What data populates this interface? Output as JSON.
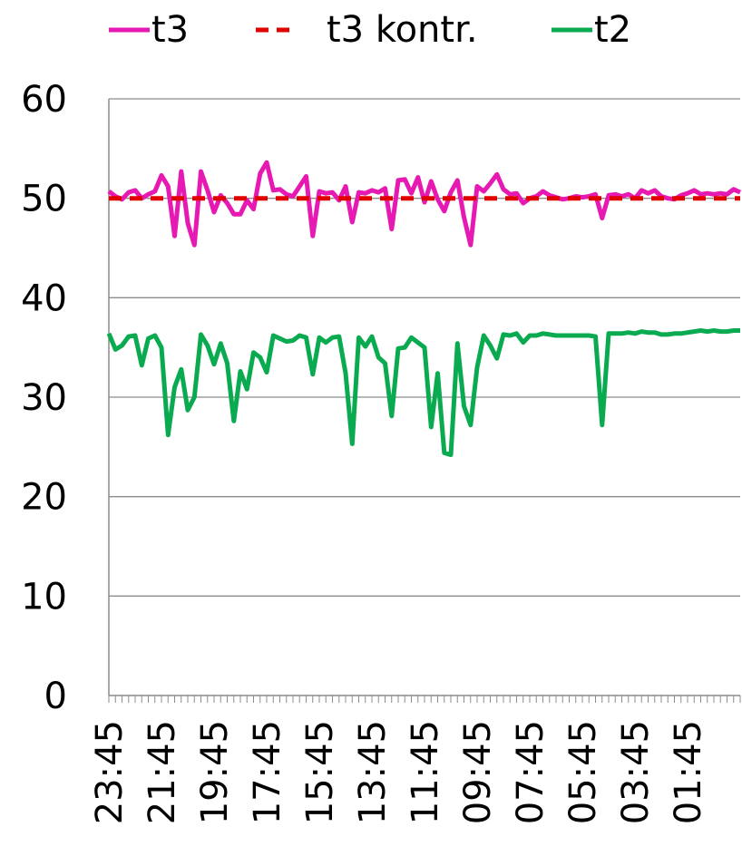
{
  "chart_data": {
    "type": "line",
    "title": "",
    "xlabel": "",
    "ylabel": "",
    "ylim": [
      0,
      60
    ],
    "yticks": [
      0,
      10,
      20,
      30,
      40,
      50,
      60
    ],
    "grid": "horizontal",
    "legend_position": "top",
    "x_tick_labels": [
      "23:45",
      "21:45",
      "19:45",
      "17:45",
      "15:45",
      "13:45",
      "11:45",
      "09:45",
      "07:45",
      "05:45",
      "03:45",
      "01:45"
    ],
    "x_tick_label_rotation": "vertical",
    "series": [
      {
        "name": "t3",
        "color": "#e619b3",
        "style": "solid",
        "values": [
          50.7,
          50.2,
          49.9,
          50.6,
          50.8,
          50.0,
          50.4,
          50.7,
          52.3,
          51.2,
          46.2,
          52.7,
          47.5,
          45.3,
          52.7,
          50.8,
          48.6,
          50.3,
          49.5,
          48.4,
          48.4,
          49.8,
          48.9,
          52.5,
          53.6,
          50.8,
          50.9,
          50.4,
          50.2,
          51.2,
          52.2,
          46.2,
          50.7,
          50.5,
          50.6,
          49.8,
          51.2,
          47.6,
          50.6,
          50.5,
          50.8,
          50.6,
          51.0,
          46.9,
          51.8,
          51.9,
          50.5,
          52.1,
          49.6,
          51.7,
          49.9,
          48.7,
          50.6,
          51.8,
          48.1,
          45.3,
          51.2,
          50.7,
          51.5,
          52.4,
          50.9,
          50.4,
          50.5,
          49.5,
          50.0,
          50.2,
          50.7,
          50.3,
          50.1,
          49.9,
          50.0,
          50.2,
          50.1,
          50.2,
          50.4,
          48.0,
          50.3,
          50.4,
          50.2,
          50.4,
          50.0,
          50.8,
          50.5,
          50.8,
          50.2,
          50.0,
          49.9,
          50.3,
          50.5,
          50.8,
          50.4,
          50.5,
          50.4,
          50.5,
          50.4,
          50.9,
          50.6
        ]
      },
      {
        "name": "t3 kontr.",
        "color": "#e00000",
        "style": "dashed",
        "values": [
          50,
          50,
          50,
          50,
          50,
          50,
          50,
          50,
          50,
          50,
          50,
          50,
          50,
          50,
          50,
          50,
          50,
          50,
          50,
          50,
          50,
          50,
          50,
          50,
          50,
          50,
          50,
          50,
          50,
          50,
          50,
          50,
          50,
          50,
          50,
          50,
          50,
          50,
          50,
          50,
          50,
          50,
          50,
          50,
          50,
          50,
          50,
          50,
          50,
          50,
          50,
          50,
          50,
          50,
          50,
          50,
          50,
          50,
          50,
          50,
          50,
          50,
          50,
          50,
          50,
          50,
          50,
          50,
          50,
          50,
          50,
          50,
          50,
          50,
          50,
          50,
          50,
          50,
          50,
          50,
          50,
          50,
          50,
          50,
          50,
          50,
          50,
          50,
          50,
          50,
          50,
          50,
          50,
          50,
          50,
          50,
          50
        ]
      },
      {
        "name": "t2",
        "color": "#0aab50",
        "style": "solid",
        "values": [
          36.4,
          34.8,
          35.2,
          36.1,
          36.2,
          33.2,
          35.9,
          36.2,
          35.0,
          26.2,
          31.0,
          32.8,
          28.7,
          30.0,
          36.3,
          35.2,
          33.3,
          35.4,
          33.4,
          27.6,
          32.6,
          30.8,
          34.5,
          34.0,
          32.5,
          36.2,
          35.9,
          35.6,
          35.7,
          36.2,
          36.0,
          32.3,
          36.0,
          35.5,
          36.0,
          36.1,
          32.4,
          25.3,
          36.0,
          35.1,
          36.1,
          34.0,
          33.4,
          28.1,
          34.9,
          35.0,
          36.0,
          35.5,
          35.0,
          27.0,
          32.4,
          24.4,
          24.2,
          35.4,
          29.1,
          27.2,
          33.0,
          36.2,
          35.2,
          33.9,
          36.3,
          36.2,
          36.4,
          35.5,
          36.2,
          36.2,
          36.4,
          36.3,
          36.2,
          36.2,
          36.2,
          36.2,
          36.2,
          36.2,
          36.1,
          27.2,
          36.4,
          36.4,
          36.4,
          36.5,
          36.4,
          36.6,
          36.5,
          36.5,
          36.3,
          36.3,
          36.4,
          36.4,
          36.5,
          36.6,
          36.7,
          36.6,
          36.7,
          36.6,
          36.6,
          36.7,
          36.7
        ]
      }
    ]
  }
}
